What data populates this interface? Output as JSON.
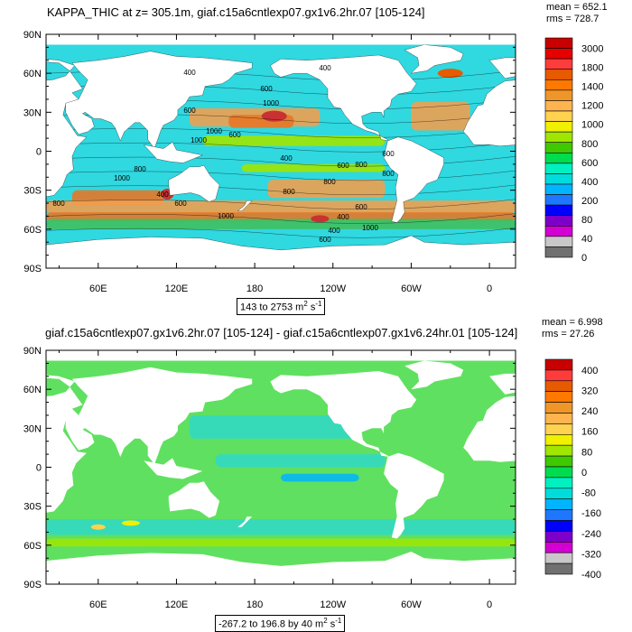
{
  "panels": [
    {
      "title": "KAPPA_THIC at z= 305.1m, giaf.c15a6cntlexp07.gx1v6.2hr.07 [105-124]",
      "mean_label": "mean = 652.1",
      "rms_label": "rms = 728.7",
      "range_text": "143 to 2753 m",
      "range_unit_exp": "2",
      "range_unit_tail": " s",
      "range_unit_exp2": "-1",
      "colorbar_labels": [
        "3000",
        "1800",
        "1400",
        "1200",
        "1000",
        "800",
        "600",
        "400",
        "200",
        "80",
        "40",
        "0"
      ],
      "contour_labels": [
        "400",
        "400",
        "600",
        "1000",
        "600",
        "1000",
        "600",
        "800",
        "400",
        "600",
        "800",
        "800",
        "600",
        "1000",
        "800",
        "600",
        "800",
        "400",
        "1000",
        "400",
        "600",
        "400",
        "1000",
        "1000",
        "600",
        "800"
      ]
    },
    {
      "title": "giaf.c15a6cntlexp07.gx1v6.2hr.07 [105-124] - giaf.c15a6cntlexp07.gx1v6.24hr.01 [105-124]",
      "mean_label": "mean = 6.998",
      "rms_label": "rms = 27.26",
      "range_text": "-267.2 to 196.8 by 40 m",
      "range_unit_exp": "2",
      "range_unit_tail": " s",
      "range_unit_exp2": "-1",
      "colorbar_labels": [
        "400",
        "320",
        "240",
        "160",
        "80",
        "0",
        "-80",
        "-160",
        "-240",
        "-320",
        "-400"
      ]
    }
  ],
  "chart_data": [
    {
      "type": "heatmap",
      "title": "KAPPA_THIC at z= 305.1m, giaf.c15a6cntlexp07.gx1v6.2hr.07 [105-124]",
      "x_ticks": [
        "60E",
        "120E",
        "180",
        "120W",
        "60W",
        "0"
      ],
      "y_ticks": [
        "90N",
        "60N",
        "30N",
        "0",
        "30S",
        "60S",
        "90S"
      ],
      "x_range": [
        20,
        380
      ],
      "y_range": [
        -90,
        90
      ],
      "levels": [
        0,
        40,
        80,
        200,
        400,
        600,
        800,
        1000,
        1200,
        1400,
        1800,
        3000
      ],
      "colors": [
        "#707070",
        "#c8c8c8",
        "#d200d2",
        "#7d00c8",
        "#0000ff",
        "#1e78ff",
        "#00b4ff",
        "#00dcdc",
        "#00f0c0",
        "#00dc50",
        "#40c800",
        "#a0e600",
        "#f0f000",
        "#ffd250",
        "#ffb450",
        "#f09628",
        "#ff7800",
        "#e65a00",
        "#ff3c3c",
        "#e60000",
        "#c80000"
      ],
      "mean": 652.1,
      "rms": 728.7,
      "min": 143,
      "max": 2753,
      "units": "m2 s-1"
    },
    {
      "type": "heatmap",
      "title": "giaf.c15a6cntlexp07.gx1v6.2hr.07 [105-124] - giaf.c15a6cntlexp07.gx1v6.24hr.01 [105-124]",
      "x_ticks": [
        "60E",
        "120E",
        "180",
        "120W",
        "60W",
        "0"
      ],
      "y_ticks": [
        "90N",
        "60N",
        "30N",
        "0",
        "30S",
        "60S",
        "90S"
      ],
      "x_range": [
        20,
        380
      ],
      "y_range": [
        -90,
        90
      ],
      "levels": [
        -400,
        -320,
        -240,
        -160,
        -80,
        0,
        80,
        160,
        240,
        320,
        400
      ],
      "colors": [
        "#707070",
        "#c8c8c8",
        "#d200d2",
        "#7d00c8",
        "#0000ff",
        "#1e78ff",
        "#00b4ff",
        "#00dcdc",
        "#00f0c0",
        "#00dc50",
        "#40c800",
        "#a0e600",
        "#f0f000",
        "#ffd250",
        "#ffb450",
        "#f09628",
        "#ff7800",
        "#e65a00",
        "#ff3c3c",
        "#c80000"
      ],
      "mean": 6.998,
      "rms": 27.26,
      "min": -267.2,
      "max": 196.8,
      "interval": 40,
      "units": "m2 s-1"
    }
  ]
}
